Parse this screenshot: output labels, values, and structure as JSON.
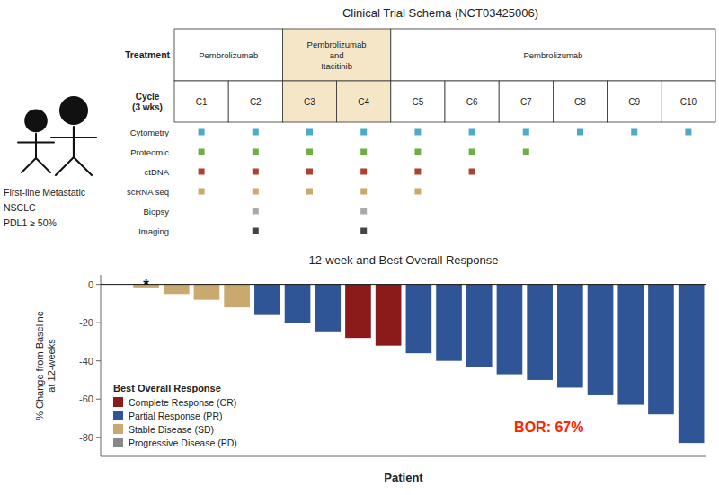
{
  "chart_data": [
    {
      "type": "schema",
      "title": "Clinical Trial Schema (NCT03425006)",
      "annotations": [
        "First-line Metastatic",
        "NSCLC",
        "PDL1 ≥ 50%"
      ],
      "rows": [
        "Treatment",
        "Cycle\n(3 wks)"
      ],
      "categories": [
        "C1",
        "C2",
        "C3",
        "C4",
        "C5",
        "C6",
        "C7",
        "C8",
        "C9",
        "C10"
      ],
      "phases": [
        {
          "label": "Pembrolizumab",
          "from": "C1",
          "to": "C2"
        },
        {
          "label": "Pembrolizumab\nand\nItacitinib",
          "from": "C3",
          "to": "C4",
          "color": "#f5e6c8"
        },
        {
          "label": "Pembrolizumab",
          "from": "C5",
          "to": "C10"
        }
      ],
      "highlight": {
        "x": [
          "C3",
          "C4"
        ],
        "color": "#f5e6c8"
      },
      "series": [
        {
          "name": "Cytometry",
          "color": "#4bacc6",
          "x": [
            "C1",
            "C2",
            "C3",
            "C4",
            "C5",
            "C6",
            "C7",
            "C8",
            "C9",
            "C10"
          ]
        },
        {
          "name": "Proteomic",
          "color": "#70ad47",
          "x": [
            "C1",
            "C2",
            "C3",
            "C4",
            "C5",
            "C6",
            "C7"
          ]
        },
        {
          "name": "ctDNA",
          "color": "#ae4132",
          "x": [
            "C1",
            "C2",
            "C3",
            "C4",
            "C5",
            "C6"
          ]
        },
        {
          "name": "scRNA seq",
          "color": "#c9a96e",
          "x": [
            "C1",
            "C2",
            "C3",
            "C4",
            "C5"
          ]
        },
        {
          "name": "Biopsy",
          "color": "#aaaaaa",
          "x": [
            "C2",
            "C4"
          ]
        },
        {
          "name": "Imaging",
          "color": "#444444",
          "x": [
            "C2",
            "C4"
          ]
        }
      ]
    },
    {
      "type": "bar",
      "title": "12-week and Best Overall Response",
      "xlabel": "Patient",
      "ylabel": "% Change from Baseline\nat 12-weeks",
      "categories": [
        null,
        null,
        null,
        null,
        null,
        null,
        null,
        null,
        null,
        null,
        null,
        null,
        null,
        null,
        null,
        null,
        null,
        null,
        null,
        null
      ],
      "values": [
        0,
        -2,
        -5,
        -8,
        -12,
        -16,
        -20,
        -25,
        -28,
        -32,
        -36,
        -40,
        -43,
        -47,
        -50,
        -54,
        -58,
        -63,
        -68,
        -83
      ],
      "colors": [
        "#888888",
        "#c9a96e",
        "#c9a96e",
        "#c9a96e",
        "#c9a96e",
        "#2f5597",
        "#2f5597",
        "#2f5597",
        "#8b1a1a",
        "#8b1a1a",
        "#2f5597",
        "#2f5597",
        "#2f5597",
        "#2f5597",
        "#2f5597",
        "#2f5597",
        "#2f5597",
        "#2f5597",
        "#2f5597",
        "#2f5597"
      ],
      "ylim": [
        -90,
        5
      ],
      "yticks": [
        0,
        -20,
        -40,
        -60,
        -80
      ],
      "legend": "lower left",
      "legend_title": "Best Overall Response",
      "legend_items": [
        {
          "label": "Complete Response (CR)",
          "color": "#8b1a1a"
        },
        {
          "label": "Partial Response (PR)",
          "color": "#2f5597"
        },
        {
          "label": "Stable Disease (SD)",
          "color": "#c9a96e"
        },
        {
          "label": "Progressive Disease (PD)",
          "color": "#888888"
        }
      ],
      "annotations": [
        {
          "text": "*",
          "index": 1,
          "y": 1.5
        },
        {
          "text": "BOR: 67%",
          "color": "#ff2200"
        }
      ]
    }
  ]
}
